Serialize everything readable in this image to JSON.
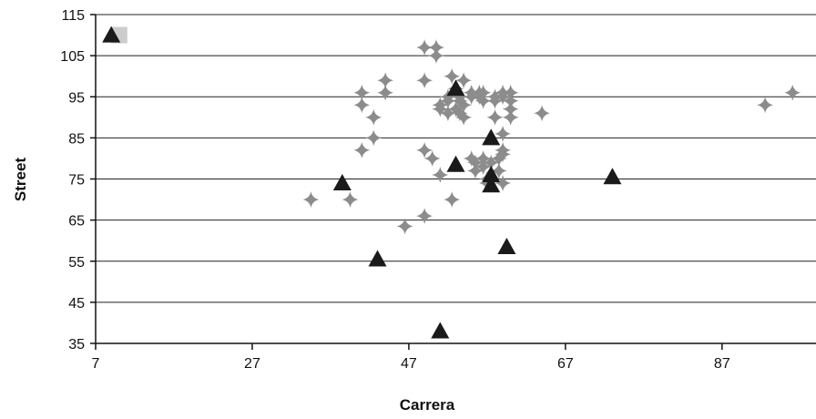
{
  "chart_data": {
    "type": "scatter",
    "title": "",
    "xlabel": "Carrera",
    "ylabel": "Street",
    "xlim": [
      7,
      99
    ],
    "ylim": [
      35,
      115
    ],
    "xticks": [
      7,
      27,
      47,
      67,
      87
    ],
    "yticks": [
      35,
      45,
      55,
      65,
      75,
      85,
      95,
      105,
      115
    ],
    "grid": "horizontal",
    "legend": "none",
    "series": [
      {
        "marker": "diamond",
        "color": "#8c8c8c",
        "points": [
          [
            34.5,
            70
          ],
          [
            39.5,
            70
          ],
          [
            41,
            93
          ],
          [
            41,
            96
          ],
          [
            41,
            82
          ],
          [
            42.5,
            85
          ],
          [
            42.5,
            90
          ],
          [
            44,
            96
          ],
          [
            44,
            99
          ],
          [
            46.5,
            63.5
          ],
          [
            49,
            107
          ],
          [
            49,
            99
          ],
          [
            49,
            82
          ],
          [
            49,
            66
          ],
          [
            50,
            80
          ],
          [
            50.5,
            107
          ],
          [
            50.5,
            105
          ],
          [
            51,
            92
          ],
          [
            51,
            93
          ],
          [
            51,
            76
          ],
          [
            52,
            95
          ],
          [
            52,
            94
          ],
          [
            52,
            91
          ],
          [
            52.5,
            100
          ],
          [
            52.5,
            70
          ],
          [
            53,
            92
          ],
          [
            53,
            97
          ],
          [
            53.5,
            95
          ],
          [
            53.5,
            94
          ],
          [
            53.5,
            91
          ],
          [
            54,
            90
          ],
          [
            54,
            93
          ],
          [
            54,
            99
          ],
          [
            55,
            96
          ],
          [
            55,
            95
          ],
          [
            55,
            80
          ],
          [
            55.5,
            79
          ],
          [
            55.5,
            77
          ],
          [
            56,
            96
          ],
          [
            56,
            95
          ],
          [
            56.5,
            96
          ],
          [
            56.5,
            94
          ],
          [
            56.5,
            80
          ],
          [
            56.5,
            78
          ],
          [
            57,
            75
          ],
          [
            57,
            74
          ],
          [
            57.5,
            79
          ],
          [
            58,
            95
          ],
          [
            58,
            94
          ],
          [
            58,
            90
          ],
          [
            58.5,
            80
          ],
          [
            58.5,
            77
          ],
          [
            59,
            96
          ],
          [
            59,
            95
          ],
          [
            59,
            86
          ],
          [
            59,
            82
          ],
          [
            59,
            81
          ],
          [
            59,
            74
          ],
          [
            60,
            96
          ],
          [
            60,
            94
          ],
          [
            60,
            92
          ],
          [
            60,
            90
          ],
          [
            64,
            91
          ],
          [
            92.5,
            93
          ],
          [
            96,
            96
          ]
        ]
      },
      {
        "marker": "triangle",
        "color": "#1a1a1a",
        "points": [
          [
            9,
            110
          ],
          [
            38.5,
            74
          ],
          [
            43,
            55.5
          ],
          [
            51,
            38
          ],
          [
            53,
            97
          ],
          [
            53,
            78.5
          ],
          [
            57.5,
            85
          ],
          [
            57.5,
            76
          ],
          [
            57.5,
            73.5
          ],
          [
            59.5,
            58.5
          ],
          [
            73,
            75.5
          ]
        ]
      },
      {
        "marker": "square",
        "color": "#cccccc",
        "points": [
          [
            10,
            110
          ]
        ]
      }
    ]
  }
}
